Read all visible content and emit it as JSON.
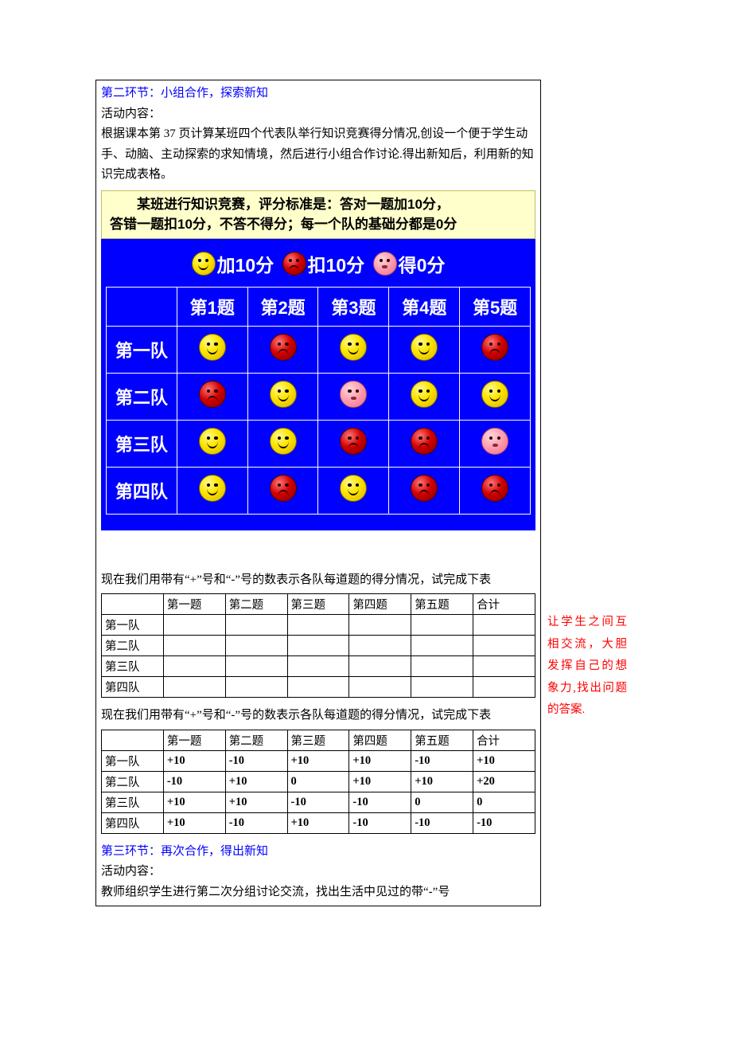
{
  "section2": {
    "title": "第二环节：小组合作，探索新知",
    "activity_label": "活动内容：",
    "activity_body": "根据课本第 37 页计算某班四个代表队举行知识竞赛得分情况,创设一个便于学生动手、动脑、主动探索的求知情境，然后进行小组合作讨论.得出新知后，利用新的知识完成表格。"
  },
  "rules": {
    "line1": "　　某班进行知识竞赛，评分标准是：答对一题加10分，",
    "line2": "答错一题扣10分，不答不得分；每一个队的基础分都是0分"
  },
  "legend": {
    "plus": "加10分",
    "minus": "扣10分",
    "zero": "得0分"
  },
  "quiz": {
    "cols": [
      "第1题",
      "第2题",
      "第3题",
      "第4题",
      "第5题"
    ],
    "rows": [
      "第一队",
      "第二队",
      "第三队",
      "第四队"
    ],
    "cells": [
      [
        "yellow",
        "red",
        "yellow",
        "yellow",
        "red"
      ],
      [
        "red",
        "yellow",
        "pink",
        "yellow",
        "yellow"
      ],
      [
        "yellow",
        "yellow",
        "red",
        "red",
        "pink"
      ],
      [
        "yellow",
        "red",
        "yellow",
        "red",
        "red"
      ]
    ]
  },
  "instruction1": "现在我们用带有“+”号和“-”号的数表示各队每道题的得分情况，试完成下表",
  "blank_table": {
    "cols": [
      "",
      "第一题",
      "第二题",
      "第三题",
      "第四题",
      "第五题",
      "合计"
    ],
    "rows": [
      "第一队",
      "第二队",
      "第三队",
      "第四队"
    ]
  },
  "instruction2": "现在我们用带有“+”号和“-”号的数表示各队每道题的得分情况，试完成下表",
  "filled_table": {
    "cols": [
      "",
      "第一题",
      "第二题",
      "第三题",
      "第四题",
      "第五题",
      "合计"
    ],
    "rows": [
      [
        "第一队",
        "+10",
        "-10",
        "+10",
        "+10",
        "-10",
        "+10"
      ],
      [
        "第二队",
        "-10",
        "+10",
        "0",
        "+10",
        "+10",
        "+20"
      ],
      [
        "第三队",
        "+10",
        "+10",
        "-10",
        "-10",
        "0",
        "0"
      ],
      [
        "第四队",
        "+10",
        "-10",
        "+10",
        "-10",
        "-10",
        "-10"
      ]
    ]
  },
  "section3": {
    "title": "第三环节：再次合作，得出新知",
    "activity_label": "活动内容：",
    "activity_body": "教师组织学生进行第二次分组讨论交流，找出生活中见过的带“-”号"
  },
  "side_note": "让学生之间互相交流，大胆发挥自己的想象力,找出问题的答案.",
  "colors": {
    "link_blue": "#0000ff",
    "panel_blue": "#0000ff",
    "rules_bg": "#ffffcc",
    "red_text": "#ff0000"
  }
}
